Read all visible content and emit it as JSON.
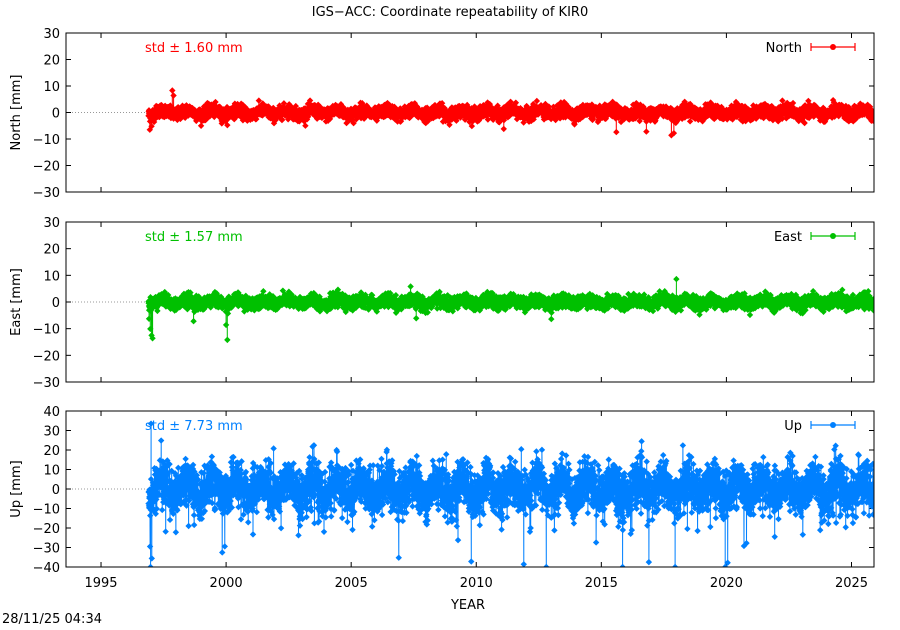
{
  "chart_title": "IGS−ACC: Coordinate repeatability of KIR0",
  "footer_timestamp": "28/11/25 04:34",
  "chart_data": [
    {
      "type": "scatter",
      "component": "North",
      "ylabel": "North [mm]",
      "legend": "North",
      "legend_position": "top-right",
      "std_label": "std ± 1.60 mm",
      "color": "#ff0000",
      "ylim": [
        -30,
        30
      ],
      "yticks": [
        30,
        20,
        10,
        0,
        -10,
        -20,
        -30
      ],
      "ytick_labels": [
        "30",
        "20",
        "10",
        "0",
        "−10",
        "−20",
        "−30"
      ],
      "xlim": [
        1993.6,
        2025.9
      ],
      "start": 1996.9,
      "end": 2025.9,
      "std": 1.6,
      "outliers": [
        [
          1996.95,
          -6.5
        ],
        [
          1997.02,
          -5.2
        ],
        [
          1997.85,
          8.3
        ],
        [
          1997.9,
          6.4
        ],
        [
          2015.6,
          -7.4
        ],
        [
          2016.8,
          -7.2
        ],
        [
          2017.8,
          -8.6
        ],
        [
          2017.9,
          -7.8
        ],
        [
          2011.1,
          -6.2
        ],
        [
          2024.3,
          3.8
        ]
      ]
    },
    {
      "type": "scatter",
      "component": "East",
      "ylabel": "East [mm]",
      "legend": "East",
      "legend_position": "top-right",
      "std_label": "std ± 1.57 mm",
      "color": "#00c000",
      "ylim": [
        -30,
        30
      ],
      "yticks": [
        30,
        20,
        10,
        0,
        -10,
        -20,
        -30
      ],
      "ytick_labels": [
        "30",
        "20",
        "10",
        "0",
        "−10",
        "−20",
        "−30"
      ],
      "xlim": [
        1993.6,
        2025.9
      ],
      "start": 1996.9,
      "end": 2025.9,
      "std": 1.57,
      "outliers": [
        [
          1996.92,
          -6.3
        ],
        [
          1996.97,
          -10.1
        ],
        [
          1997.02,
          -12.5
        ],
        [
          1997.06,
          -13.6
        ],
        [
          1998.7,
          -7.2
        ],
        [
          2000.05,
          -14.2
        ],
        [
          2000.0,
          -8.6
        ],
        [
          2018.0,
          8.6
        ],
        [
          2013.0,
          -6.4
        ],
        [
          2007.6,
          -6.1
        ]
      ]
    },
    {
      "type": "scatter",
      "component": "Up",
      "ylabel": "Up [mm]",
      "legend": "Up",
      "legend_position": "top-right",
      "std_label": "std ± 7.73 mm",
      "color": "#0080ff",
      "ylim": [
        -40,
        40
      ],
      "yticks": [
        40,
        30,
        20,
        10,
        0,
        -10,
        -20,
        -30,
        -40
      ],
      "ytick_labels": [
        "40",
        "30",
        "20",
        "10",
        "0",
        "−10",
        "−20",
        "−30",
        "−40"
      ],
      "xlim": [
        1993.6,
        2025.9
      ],
      "start": 1996.9,
      "end": 2025.9,
      "std": 7.73,
      "outliers": [
        [
          1997.0,
          33.5
        ],
        [
          1996.98,
          -40
        ],
        [
          1997.03,
          -35.6
        ],
        [
          1996.96,
          -29.5
        ],
        [
          2009.8,
          -37.2
        ],
        [
          2011.9,
          -38.6
        ],
        [
          2012.8,
          -40
        ],
        [
          2015.85,
          -40
        ],
        [
          2016.9,
          -37.5
        ],
        [
          2017.95,
          -40
        ],
        [
          2019.95,
          -40
        ],
        [
          2020.05,
          -37.8
        ],
        [
          2001.9,
          20.8
        ],
        [
          2011.8,
          20.4
        ],
        [
          2004.2,
          13.5
        ],
        [
          2008.8,
          17.8
        ]
      ]
    }
  ],
  "x_axis": {
    "label": "YEAR",
    "ticks": [
      1995,
      2000,
      2005,
      2010,
      2015,
      2020,
      2025
    ],
    "tick_labels": [
      "1995",
      "2000",
      "2005",
      "2010",
      "2015",
      "2020",
      "2025"
    ]
  }
}
